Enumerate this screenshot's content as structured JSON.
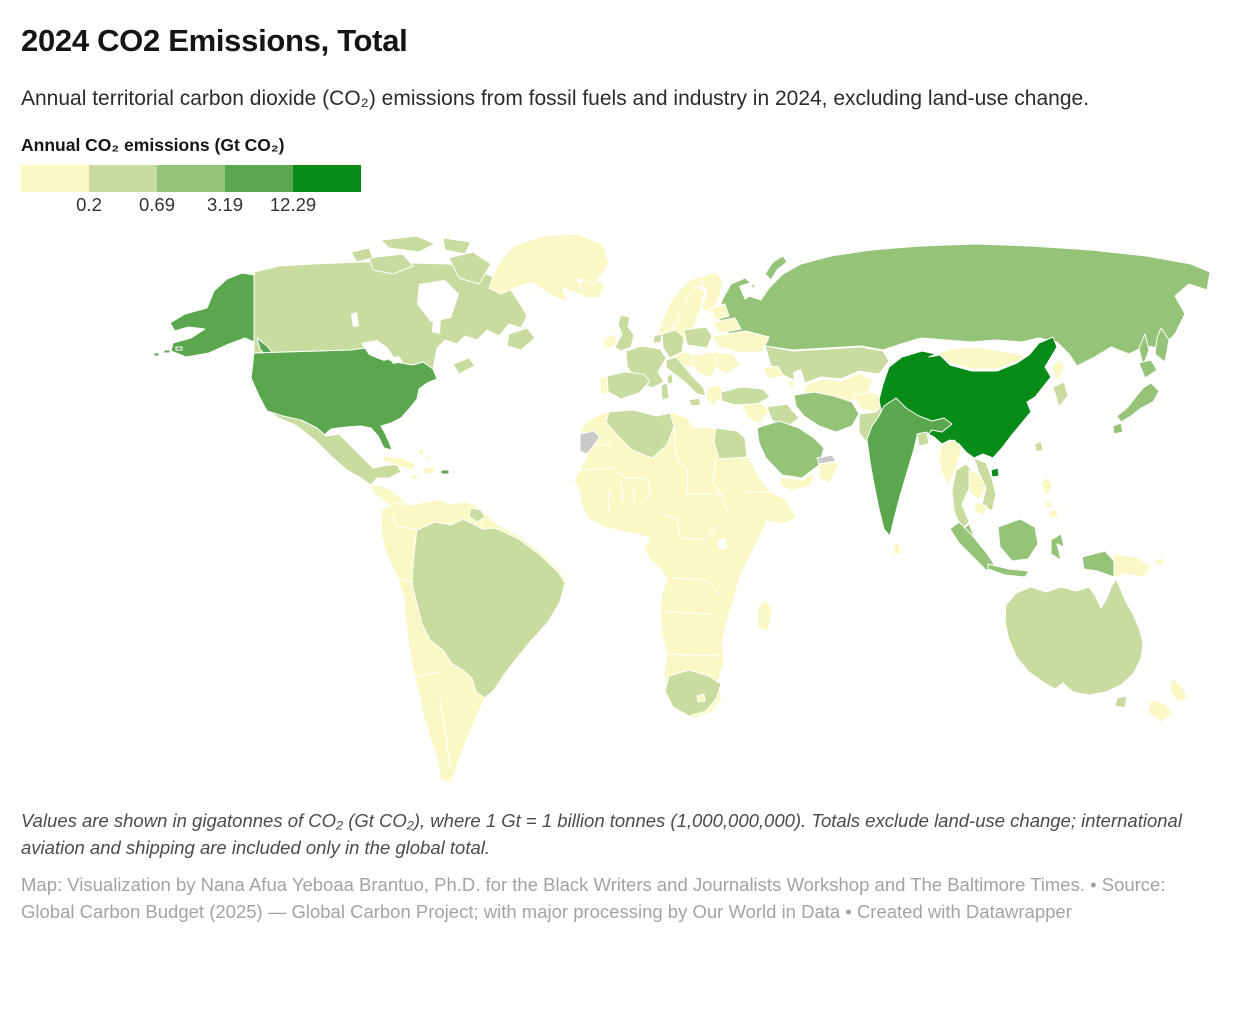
{
  "title": "2024 CO2 Emissions, Total",
  "subtitle": "Annual territorial carbon dioxide (CO₂) emissions from fossil fuels and industry in 2024, excluding land-use change.",
  "legend": {
    "title": "Annual CO₂ emissions (Gt CO₂)",
    "ticks": [
      "0.2",
      "0.69",
      "3.19",
      "12.29"
    ],
    "colors": [
      "#fbf8c5",
      "#c9dc9f",
      "#95c478",
      "#5aa74e",
      "#078b19"
    ],
    "no_data_color": "#c9c9c9"
  },
  "notes": "Values are shown in gigatonnes of CO₂ (Gt CO₂), where 1 Gt = 1 billion tonnes (1,000,000,000). Totals exclude land-use change; international aviation and shipping are included only in the global total.",
  "attribution": "Map: Visualization by Nana Afua Yeboaa Brantuo, Ph.D. for the Black Writers and Journalists Workshop and The Baltimore Times. • Source: Global Carbon Budget (2025) — Global Carbon Project; with major processing by Our World in Data • Created with Datawrapper",
  "chart_data": {
    "type": "choropleth",
    "title": "2024 CO2 Emissions, Total",
    "unit": "Gt CO₂",
    "scale_stops": [
      0.2,
      0.69,
      3.19,
      12.29
    ],
    "legend_buckets": [
      {
        "bucket": 1,
        "range": "< 0.2 Gt"
      },
      {
        "bucket": 2,
        "range": "0.2 – 0.69 Gt"
      },
      {
        "bucket": 3,
        "range": "0.69 – 3.19 Gt"
      },
      {
        "bucket": 4,
        "range": "3.19 – 12.29 Gt"
      },
      {
        "bucket": 5,
        "range": "≥ 12.29 Gt"
      }
    ],
    "country_buckets": {
      "china": 5,
      "usa": 4,
      "india": 4,
      "russia": 3,
      "japan": 3,
      "iran": 3,
      "saudi_arabia": 3,
      "indonesia": 3,
      "malaysia": 3,
      "canada": 2,
      "mexico": 2,
      "brazil": 2,
      "french_guiana": 2,
      "united_kingdom": 2,
      "france": 2,
      "spain": 2,
      "italy": 2,
      "germany": 2,
      "netherlands": 2,
      "poland": 2,
      "kazakhstan": 2,
      "turkey": 2,
      "iraq": 2,
      "egypt": 2,
      "algeria": 2,
      "south_africa": 2,
      "australia": 2,
      "thailand": 2,
      "vietnam": 2,
      "south_korea": 2,
      "taiwan": 2,
      "pakistan": 2,
      "bangladesh": 2,
      "greenland": 1,
      "iceland": 1,
      "ireland": 1,
      "portugal": 1,
      "norway": 1,
      "sweden": 1,
      "finland": 1,
      "denmark": 1,
      "baltic_states": 1,
      "belarus": 1,
      "ukraine": 1,
      "romania_moldova": 1,
      "central_europe": 1,
      "balkans": 1,
      "greece": 1,
      "africa": 1,
      "madagascar": 1,
      "lesotho": 1,
      "south_america": 1,
      "central_america": 1,
      "cuba": 1,
      "hispaniola": 1,
      "jamaica": 1,
      "bahamas": 1,
      "caucasus": 1,
      "levant": 1,
      "yemen": 1,
      "oman": 1,
      "central_asia": 1,
      "afghanistan": 1,
      "mongolia": 1,
      "north_korea": 1,
      "nepal": 1,
      "sri_lanka": 1,
      "myanmar": 1,
      "laos": 1,
      "cambodia": 1,
      "philippines": 1,
      "papua_new_guinea": 1,
      "new_zealand": 1,
      "western_sahara": "no_data",
      "united_arab_emirates": "no_data"
    }
  }
}
